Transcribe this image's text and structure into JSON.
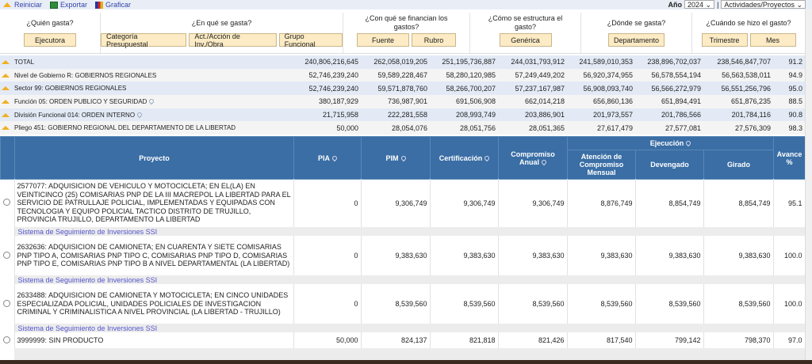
{
  "toolbar": {
    "reset": "Reiniciar",
    "export": "Exportar",
    "chart": "Graficar",
    "year_label": "Año",
    "year": "2024",
    "view": "Actividades/Proyectos"
  },
  "filters": [
    {
      "question": "¿Quién gasta?",
      "buttons": [
        "Ejecutora"
      ]
    },
    {
      "question": "¿En qué se gasta?",
      "buttons": [
        "Categoría Presupuestal",
        "Act./Acción de Inv./Obra",
        "Grupo Funcional"
      ]
    },
    {
      "question": "¿Con qué se financian los gastos?",
      "buttons": [
        "Fuente",
        "Rubro"
      ]
    },
    {
      "question": "¿Cómo se estructura el gasto?",
      "buttons": [
        "Genérica"
      ]
    },
    {
      "question": "¿Dónde se gasta?",
      "buttons": [
        "Departamento"
      ]
    },
    {
      "question": "¿Cuándo se hizo el gasto?",
      "buttons": [
        "Trimestre",
        "Mes"
      ]
    }
  ],
  "summary": [
    {
      "label": "TOTAL",
      "values": [
        "240,806,216,645",
        "262,058,019,205",
        "251,195,736,887",
        "244,031,793,912",
        "241,589,010,353",
        "238,896,702,037",
        "238,546,847,707",
        "91.2"
      ]
    },
    {
      "label": "Nivel de Gobierno R: GOBIERNOS REGIONALES",
      "values": [
        "52,746,239,240",
        "59,589,228,467",
        "58,280,120,985",
        "57,249,449,202",
        "56,920,374,955",
        "56,578,554,194",
        "56,563,538,011",
        "94.9"
      ]
    },
    {
      "label": "Sector 99: GOBIERNOS REGIONALES",
      "values": [
        "52,746,239,240",
        "59,571,878,760",
        "58,266,700,207",
        "57,237,167,987",
        "56,908,093,740",
        "56,566,272,979",
        "56,551,256,796",
        "95.0"
      ]
    },
    {
      "label": "Función 05: ORDEN PUBLICO Y SEGURIDAD",
      "values": [
        "380,187,929",
        "736,987,901",
        "691,506,908",
        "662,014,218",
        "656,860,136",
        "651,894,491",
        "651,876,235",
        "88.5"
      ]
    },
    {
      "label": "División Funcional 014: ORDEN INTERNO",
      "values": [
        "21,715,958",
        "222,281,558",
        "208,993,749",
        "203,886,901",
        "201,973,557",
        "201,786,566",
        "201,784,116",
        "90.8"
      ]
    },
    {
      "label": "Pliego 451: GOBIERNO REGIONAL DEL DEPARTAMENTO DE LA LIBERTAD",
      "values": [
        "50,000",
        "28,054,076",
        "28,051,756",
        "28,051,365",
        "27,617,479",
        "27,577,081",
        "27,576,309",
        "98.3"
      ]
    }
  ],
  "headers": {
    "proyecto": "Proyecto",
    "pia": "PIA",
    "pim": "PIM",
    "cert": "Certificación",
    "comp1": "Compromiso",
    "comp2": "Anual",
    "ejecucion": "Ejecución",
    "aten1": "Atención de",
    "aten2": "Compromiso",
    "aten3": "Mensual",
    "dev": "Devengado",
    "gir": "Girado",
    "av1": "Avance",
    "av2": "%"
  },
  "rows": [
    {
      "name": "2577077: ADQUISICION DE VEHICULO Y MOTOCICLETA; EN EL(LA) EN VEINTICINCO (25) COMISARIAS PNP DE LA III MACREPOL LA LIBERTAD PARA EL SERVICIO DE PATRULLAJE POLICIAL, IMPLEMENTADAS Y EQUIPADAS CON TECNOLOGIA Y EQUIPO POLICIAL TACTICO DISTRITO DE TRUJILLO, PROVINCIA TRUJILLO, DEPARTAMENTO LA LIBERTAD",
      "values": [
        "0",
        "9,306,749",
        "9,306,749",
        "9,306,749",
        "8,876,749",
        "8,854,749",
        "8,854,749",
        "95.1"
      ],
      "link": "Sistema de Seguimiento de Inversiones SSI"
    },
    {
      "name": "2632636: ADQUISICION DE CAMIONETA; EN CUARENTA Y SIETE COMISARIAS PNP TIPO A, COMISARIAS PNP TIPO C, COMISARIAS PNP TIPO D, COMISARIAS PNP TIPO E, COMISARIAS PNP TIPO B A NIVEL DEPARTAMENTAL (LA LIBERTAD)",
      "values": [
        "0",
        "9,383,630",
        "9,383,630",
        "9,383,630",
        "9,383,630",
        "9,383,630",
        "9,383,630",
        "100.0"
      ],
      "link": "Sistema de Seguimiento de Inversiones SSI"
    },
    {
      "name": "2633488: ADQUISICION DE CAMIONETA Y MOTOCICLETA; EN CINCO UNIDADES ESPECIALIZADA POLICIAL, UNIDADES POLICIALES DE INVESTIGACION CRIMINAL Y CRIMINALISTICA A NIVEL PROVINCIAL (LA LIBERTAD - TRUJILLO)",
      "values": [
        "0",
        "8,539,560",
        "8,539,560",
        "8,539,560",
        "8,539,560",
        "8,539,560",
        "8,539,560",
        "100.0"
      ],
      "link": "Sistema de Seguimiento de Inversiones SSI"
    },
    {
      "name": "3999999: SIN PRODUCTO",
      "values": [
        "50,000",
        "824,137",
        "821,818",
        "821,426",
        "817,540",
        "799,142",
        "798,370",
        "97.0"
      ]
    }
  ],
  "colors": {
    "header": "#3a6ea5",
    "button": "#fcebc4",
    "link": "#5555cc"
  }
}
